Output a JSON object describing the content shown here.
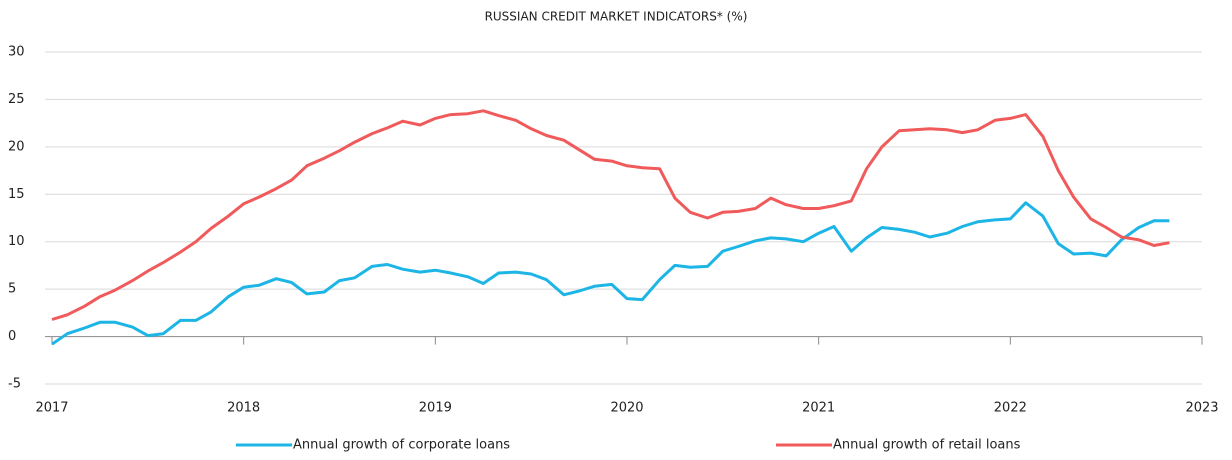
{
  "chart_data": {
    "type": "line",
    "title": "RUSSIAN CREDIT MARKET INDICATORS* (%)",
    "x": [
      2017,
      2017.08,
      2017.17,
      2017.25,
      2017.33,
      2017.42,
      2017.5,
      2017.58,
      2017.67,
      2017.75,
      2017.83,
      2017.92,
      2018,
      2018.08,
      2018.17,
      2018.25,
      2018.33,
      2018.42,
      2018.5,
      2018.58,
      2018.67,
      2018.75,
      2018.83,
      2018.92,
      2019,
      2019.08,
      2019.17,
      2019.25,
      2019.33,
      2019.42,
      2019.5,
      2019.58,
      2019.67,
      2019.75,
      2019.83,
      2019.92,
      2020,
      2020.08,
      2020.17,
      2020.25,
      2020.33,
      2020.42,
      2020.5,
      2020.58,
      2020.67,
      2020.75,
      2020.83,
      2020.92,
      2021,
      2021.08,
      2021.17,
      2021.25,
      2021.33,
      2021.42,
      2021.5,
      2021.58,
      2021.67,
      2021.75,
      2021.83,
      2021.92,
      2022,
      2022.08,
      2022.17,
      2022.25,
      2022.33,
      2022.42,
      2022.5,
      2022.58,
      2022.67,
      2022.75,
      2022.83
    ],
    "series": [
      {
        "name": "Annual growth of corporate loans",
        "color": "#1cb5e5",
        "values": [
          -0.8,
          0.3,
          0.9,
          1.5,
          1.5,
          1.0,
          0.1,
          0.3,
          1.7,
          1.7,
          2.6,
          4.2,
          5.2,
          5.4,
          6.1,
          5.7,
          4.5,
          4.7,
          5.9,
          6.2,
          7.4,
          7.6,
          7.1,
          6.8,
          7.0,
          6.7,
          6.3,
          5.6,
          6.7,
          6.8,
          6.6,
          6.0,
          4.4,
          4.8,
          5.3,
          5.5,
          4.0,
          3.9,
          6.0,
          7.5,
          7.3,
          7.4,
          9.0,
          9.5,
          10.1,
          10.4,
          10.3,
          10.0,
          10.9,
          11.6,
          9.0,
          10.4,
          11.5,
          11.3,
          11.0,
          10.5,
          10.9,
          11.6,
          12.1,
          12.3,
          12.4,
          14.1,
          12.7,
          9.8,
          8.7,
          8.8,
          8.5,
          10.2,
          11.5,
          12.2,
          12.2
        ]
      },
      {
        "name": "Annual growth of retail loans",
        "color": "#f05a5b",
        "values": [
          1.8,
          2.3,
          3.2,
          4.2,
          4.9,
          5.9,
          6.9,
          7.8,
          8.9,
          10.0,
          11.4,
          12.7,
          14.0,
          14.7,
          15.6,
          16.5,
          18.0,
          18.8,
          19.6,
          20.5,
          21.4,
          22.0,
          22.7,
          22.3,
          23.0,
          23.4,
          23.5,
          23.8,
          23.3,
          22.8,
          21.9,
          21.2,
          20.7,
          19.7,
          18.7,
          18.5,
          18.0,
          17.8,
          17.7,
          14.6,
          13.1,
          12.5,
          13.1,
          13.2,
          13.5,
          14.6,
          13.9,
          13.5,
          13.5,
          13.8,
          14.3,
          17.7,
          20.0,
          21.7,
          21.8,
          21.9,
          21.8,
          21.5,
          21.8,
          22.8,
          23.0,
          23.4,
          21.1,
          17.5,
          14.7,
          12.4,
          11.5,
          10.5,
          10.2,
          9.6,
          9.9
        ]
      }
    ],
    "xlim": [
      2017,
      2023
    ],
    "xticks": [
      2017,
      2018,
      2019,
      2020,
      2021,
      2022,
      2023
    ],
    "ylim": [
      -5,
      30
    ],
    "yticks": [
      -5,
      0,
      5,
      10,
      15,
      20,
      25,
      30
    ],
    "grid": true,
    "legend": "bottom"
  }
}
